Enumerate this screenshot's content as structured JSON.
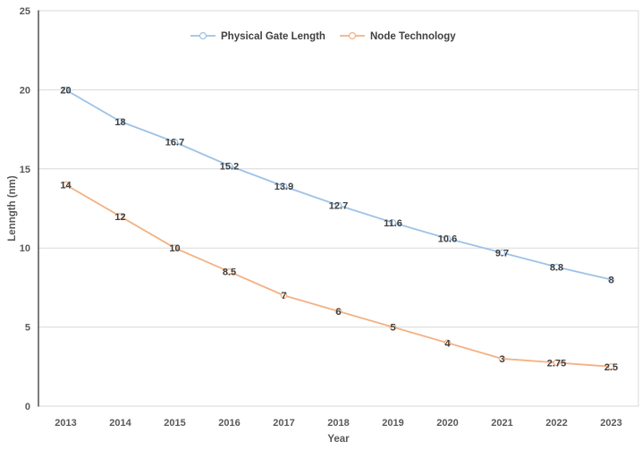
{
  "chart_data": {
    "type": "line",
    "x": [
      "2013",
      "2014",
      "2015",
      "2016",
      "2017",
      "2018",
      "2019",
      "2020",
      "2021",
      "2022",
      "2023"
    ],
    "series": [
      {
        "name": "Physical Gate Length",
        "color": "#9DC3E6",
        "values": [
          20,
          18,
          16.7,
          15.2,
          13.9,
          12.7,
          11.6,
          10.6,
          9.7,
          8.8,
          8
        ]
      },
      {
        "name": "Node Technology",
        "color": "#F4B183",
        "values": [
          14,
          12,
          10,
          8.5,
          7,
          6,
          5,
          4,
          3,
          2.75,
          2.5
        ]
      }
    ],
    "title": "",
    "xlabel": "Year",
    "ylabel": "Lenngth (nm)",
    "ylim": [
      0,
      25
    ],
    "ytick_step": 5,
    "yticks": [
      0,
      5,
      10,
      15,
      20,
      25
    ],
    "grid": true,
    "legend_position": "top-center",
    "data_labels": "center",
    "marker": "open-circle"
  },
  "style": {
    "background": "#FFFFFF",
    "gridline_color": "#D9D9D9",
    "plot_border_color": "#D9D9D9",
    "y_axis_line_color": "#262626",
    "tick_text_color": "#595959",
    "data_label_color": "#404040",
    "legend_text_color": "#404040",
    "marker_fill": "#FFFFFF"
  }
}
